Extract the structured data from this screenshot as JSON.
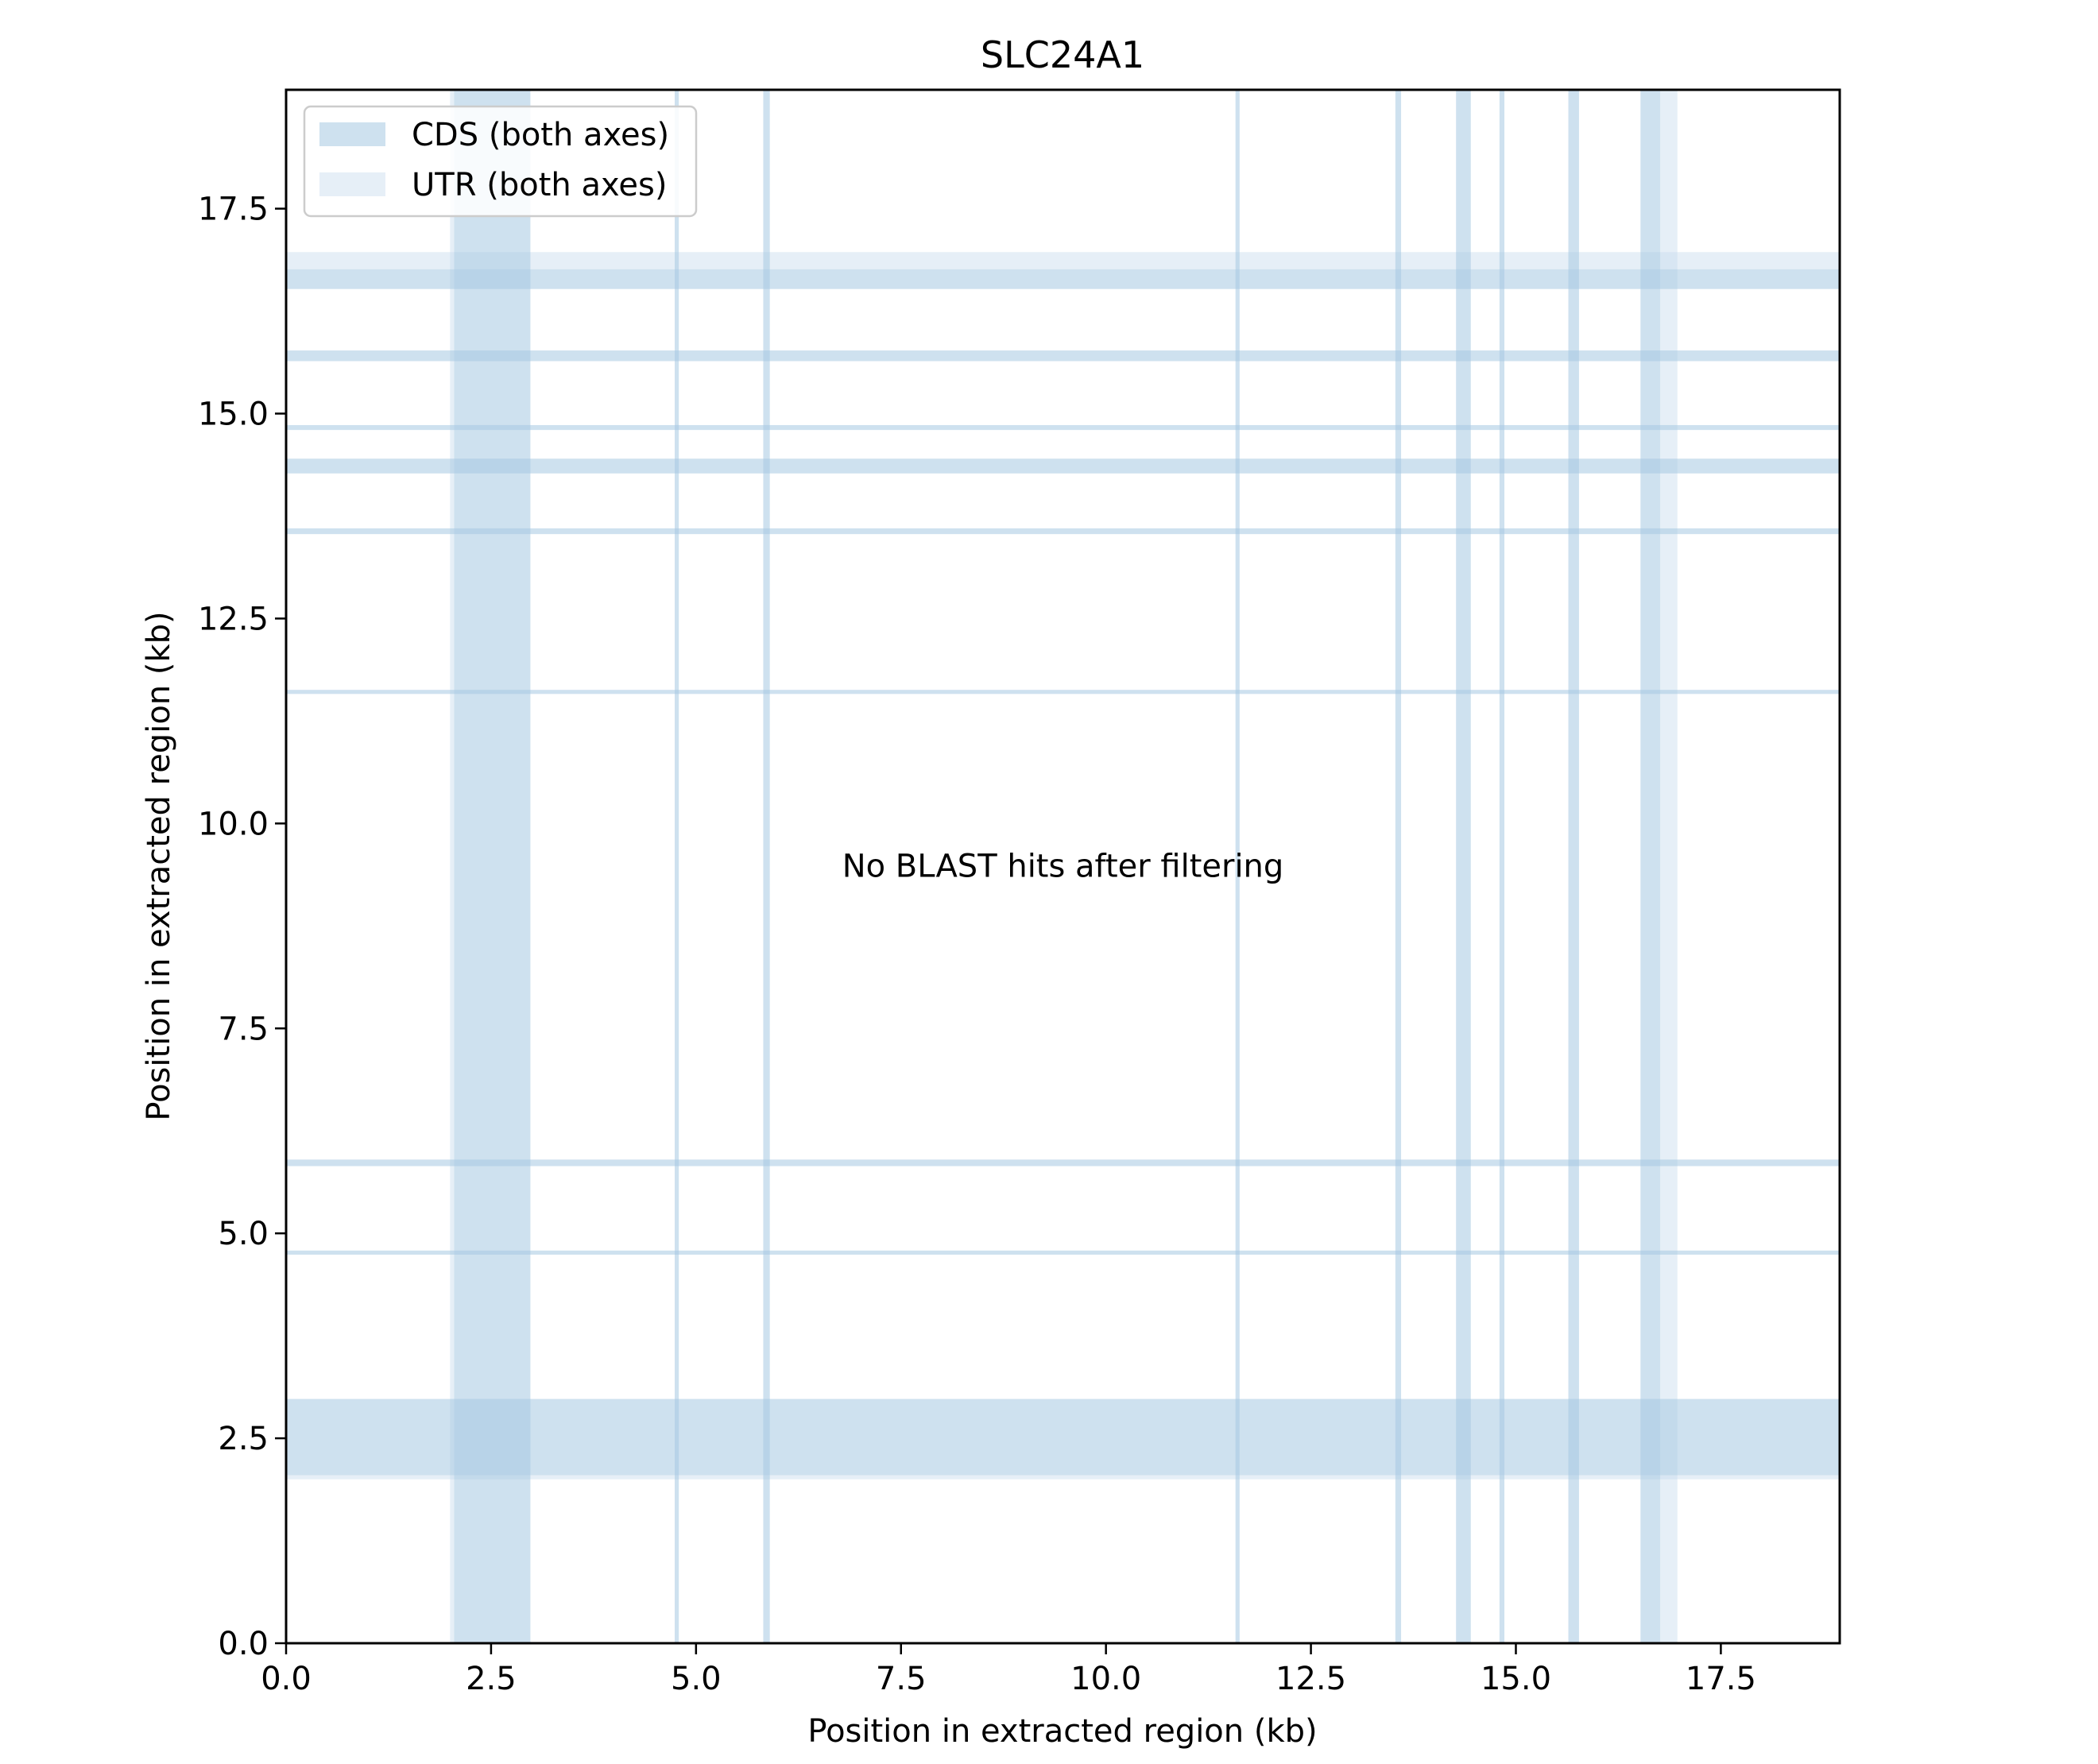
{
  "chart_data": {
    "type": "heatmap",
    "title": "SLC24A1",
    "xlabel": "Position in extracted region (kb)",
    "ylabel": "Position in extracted region (kb)",
    "xlim": [
      0,
      18.95
    ],
    "ylim": [
      0,
      18.95
    ],
    "x_ticks": [
      0.0,
      2.5,
      5.0,
      7.5,
      10.0,
      12.5,
      15.0,
      17.5
    ],
    "y_ticks": [
      0.0,
      2.5,
      5.0,
      7.5,
      10.0,
      12.5,
      15.0,
      17.5
    ],
    "tick_labels": [
      "0.0",
      "2.5",
      "5.0",
      "7.5",
      "10.0",
      "12.5",
      "15.0",
      "17.5"
    ],
    "grid": false,
    "legend_position": "top-left",
    "legend": [
      {
        "label": "CDS (both axes)",
        "color": "#a6c8e2",
        "opacity": 0.55
      },
      {
        "label": "UTR (both axes)",
        "color": "#c8dcee",
        "opacity": 0.45
      }
    ],
    "annotation": "No BLAST hits after filtering",
    "cds_regions": [
      [
        2.05,
        2.98
      ],
      [
        4.74,
        4.79
      ],
      [
        5.82,
        5.9
      ],
      [
        11.58,
        11.63
      ],
      [
        13.53,
        13.6
      ],
      [
        14.27,
        14.45
      ],
      [
        14.8,
        14.86
      ],
      [
        15.64,
        15.77
      ],
      [
        16.52,
        16.76
      ]
    ],
    "utr_regions": [
      [
        2.0,
        2.05
      ],
      [
        16.76,
        16.97
      ]
    ]
  }
}
